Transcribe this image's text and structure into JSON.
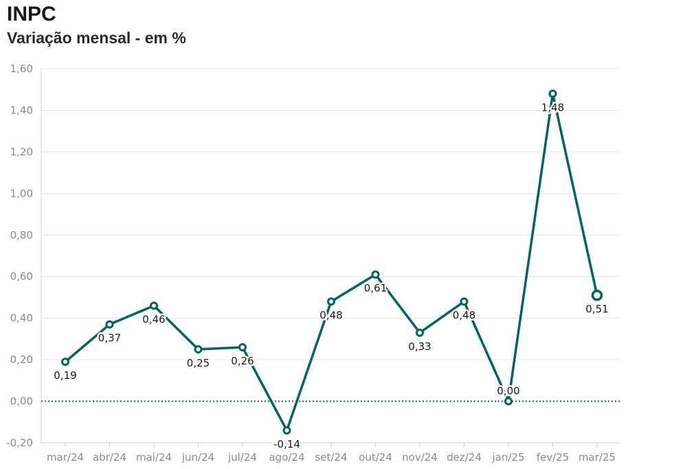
{
  "header": {
    "title": "INPC",
    "subtitle": "Variação mensal - em %"
  },
  "colors": {
    "line": "#00665e",
    "zero_line": "#00665e",
    "grid": "#e6e6e6",
    "tick_text": "#8a8a8a"
  },
  "chart_data": {
    "type": "line",
    "title": "INPC",
    "subtitle": "Variação mensal - em %",
    "xlabel": "",
    "ylabel": "",
    "ylim": [
      -0.2,
      1.6
    ],
    "ytick_values": [
      -0.2,
      0,
      0.2,
      0.4,
      0.6,
      0.8,
      1.0,
      1.2,
      1.4,
      1.6
    ],
    "ytick_labels": [
      "-0,20",
      "0,00",
      "0,20",
      "0,40",
      "0,60",
      "0,80",
      "1,00",
      "1,20",
      "1,40",
      "1,60"
    ],
    "grid": true,
    "zero_line": "dotted",
    "categories": [
      "mar/24",
      "abr/24",
      "mai/24",
      "jun/24",
      "jul/24",
      "ago/24",
      "set/24",
      "out/24",
      "nov/24",
      "dez/24",
      "jan/25",
      "fev/25",
      "mar/25"
    ],
    "values": [
      0.19,
      0.37,
      0.46,
      0.25,
      0.26,
      -0.14,
      0.48,
      0.61,
      0.33,
      0.48,
      0.0,
      1.48,
      0.51
    ],
    "value_labels": [
      "0,19",
      "0,37",
      "0,46",
      "0,25",
      "0,26",
      "-0,14",
      "0,48",
      "0,61",
      "0,33",
      "0,48",
      "0,00",
      "1,48",
      "0,51"
    ],
    "highlighted_last_point": true
  }
}
